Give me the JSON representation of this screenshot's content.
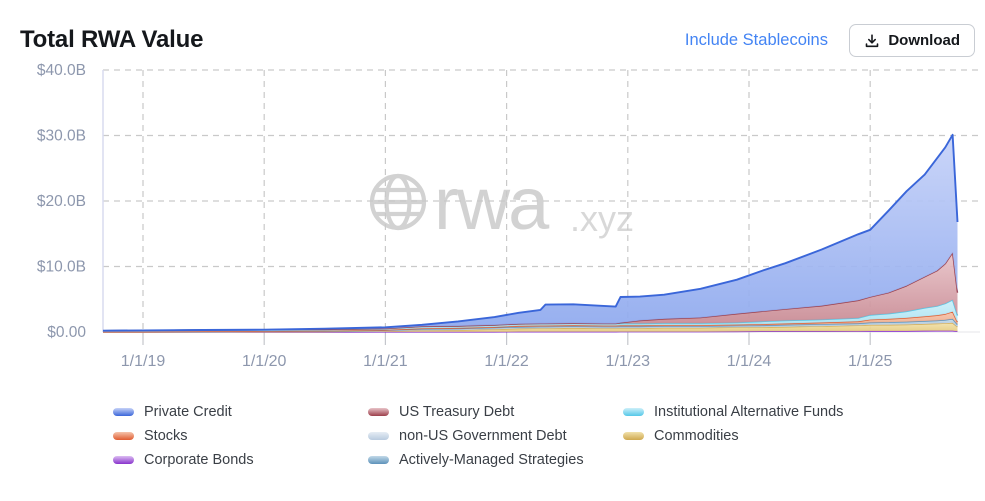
{
  "header": {
    "title": "Total RWA Value",
    "include_stablecoins_label": "Include Stablecoins",
    "download_label": "Download",
    "accent_color": "#4384f4"
  },
  "chart_data": {
    "type": "area",
    "stacked": true,
    "title": "Total RWA Value",
    "xlabel": "",
    "ylabel": "",
    "ylim": [
      0,
      40
    ],
    "xlim": [
      2018.67,
      2025.91
    ],
    "grid": "dashed",
    "legend_position": "bottom",
    "watermark": {
      "icon": "globe-icon",
      "brand": "rwa",
      "suffix": ".xyz",
      "color": "#d2d2d2"
    },
    "y_ticks": [
      {
        "value": 0,
        "label": "$0.00"
      },
      {
        "value": 10,
        "label": "$10.0B"
      },
      {
        "value": 20,
        "label": "$20.0B"
      },
      {
        "value": 30,
        "label": "$30.0B"
      },
      {
        "value": 40,
        "label": "$40.0B"
      }
    ],
    "x_ticks": [
      {
        "year": 2019,
        "label": "1/1/19"
      },
      {
        "year": 2020,
        "label": "1/1/20"
      },
      {
        "year": 2021,
        "label": "1/1/21"
      },
      {
        "year": 2022,
        "label": "1/1/22"
      },
      {
        "year": 2023,
        "label": "1/1/23"
      },
      {
        "year": 2024,
        "label": "1/1/24"
      },
      {
        "year": 2025,
        "label": "1/1/25"
      }
    ],
    "x": [
      2018.67,
      2019.0,
      2019.5,
      2020.0,
      2020.5,
      2021.0,
      2021.3,
      2021.6,
      2021.9,
      2022.1,
      2022.28,
      2022.32,
      2022.55,
      2022.8,
      2022.9,
      2022.94,
      2023.1,
      2023.3,
      2023.6,
      2023.9,
      2024.1,
      2024.3,
      2024.6,
      2024.9,
      2025.0,
      2025.15,
      2025.3,
      2025.45,
      2025.55,
      2025.62,
      2025.68,
      2025.72
    ],
    "stack_order": [
      "corporate_bonds",
      "commodities",
      "non_us_gov",
      "actively_managed",
      "stocks",
      "inst_alt_funds",
      "us_treasury",
      "private_credit"
    ],
    "legend_order": [
      "private_credit",
      "us_treasury",
      "inst_alt_funds",
      "stocks",
      "non_us_gov",
      "commodities",
      "corporate_bonds",
      "actively_managed"
    ],
    "series": {
      "private_credit": {
        "label": "Private Credit",
        "line_color": "#3a66d9",
        "fill_top": "#c6d2f8",
        "fill_bottom": "#8da8ee",
        "values": [
          0,
          0,
          0,
          0,
          0.1,
          0.2,
          0.25,
          0.7,
          1.2,
          1.7,
          2.1,
          2.9,
          2.9,
          2.7,
          2.6,
          3.95,
          3.65,
          3.7,
          4.4,
          5.2,
          6.15,
          7.0,
          8.6,
          10.1,
          10.25,
          12.5,
          14.45,
          15.6,
          17.15,
          17.75,
          18.0,
          10.8
        ]
      },
      "us_treasury": {
        "label": "US Treasury Debt",
        "line_color": "#9c3f4b",
        "fill_top": "#e8c3c8",
        "fill_bottom": "#c5848e",
        "values": [
          0,
          0,
          0,
          0,
          0,
          0,
          0,
          0,
          0,
          0,
          0,
          0,
          0,
          0,
          0,
          0.1,
          0.45,
          0.65,
          0.85,
          1.35,
          1.55,
          1.75,
          2.1,
          2.7,
          2.75,
          3.2,
          3.9,
          4.75,
          5.4,
          6.1,
          7.2,
          3.5
        ]
      },
      "inst_alt_funds": {
        "label": "Institutional Alternative Funds",
        "line_color": "#54c8e8",
        "fill_top": "#cdf0f9",
        "fill_bottom": "#9fdef0",
        "values": [
          0.15,
          0.2,
          0.2,
          0.22,
          0.2,
          0.2,
          0.3,
          0.3,
          0.3,
          0.3,
          0.3,
          0.3,
          0.3,
          0.3,
          0.3,
          0.3,
          0.3,
          0.3,
          0.3,
          0.3,
          0.4,
          0.45,
          0.45,
          0.5,
          0.7,
          0.8,
          1.0,
          1.3,
          1.4,
          1.6,
          1.8,
          1.0
        ]
      },
      "stocks": {
        "label": "Stocks",
        "line_color": "#e05c30",
        "fill_top": "#f5c4ab",
        "fill_bottom": "#eb9d77",
        "values": [
          0,
          0,
          0.03,
          0.03,
          0.05,
          0.05,
          0.08,
          0.1,
          0.1,
          0.15,
          0.15,
          0.15,
          0.15,
          0.15,
          0.15,
          0.15,
          0.15,
          0.15,
          0.15,
          0.15,
          0.2,
          0.2,
          0.25,
          0.3,
          0.45,
          0.5,
          0.6,
          0.7,
          0.8,
          0.9,
          1.1,
          0.35
        ]
      },
      "non_us_gov": {
        "label": "non-US Government Debt",
        "line_color": "#b9cbdf",
        "fill_top": "#e6edf4",
        "fill_bottom": "#d7e2ee",
        "values": [
          0.05,
          0.05,
          0.05,
          0.05,
          0.05,
          0.05,
          0.08,
          0.08,
          0.1,
          0.1,
          0.1,
          0.1,
          0.1,
          0.1,
          0.1,
          0.1,
          0.1,
          0.1,
          0.1,
          0.1,
          0.1,
          0.1,
          0.1,
          0.1,
          0.1,
          0.15,
          0.15,
          0.15,
          0.15,
          0.15,
          0.15,
          0.1
        ]
      },
      "commodities": {
        "label": "Commodities",
        "line_color": "#cfa84e",
        "fill_top": "#f1e1ab",
        "fill_bottom": "#e4c97c",
        "values": [
          0,
          0,
          0.02,
          0.05,
          0.08,
          0.15,
          0.25,
          0.3,
          0.4,
          0.5,
          0.55,
          0.55,
          0.6,
          0.55,
          0.55,
          0.55,
          0.55,
          0.6,
          0.6,
          0.65,
          0.65,
          0.7,
          0.8,
          0.9,
          0.95,
          0.95,
          1.0,
          1.05,
          1.1,
          1.15,
          1.2,
          0.7
        ]
      },
      "corporate_bonds": {
        "label": "Corporate Bonds",
        "line_color": "#8833cc",
        "fill_top": "#dcbdf2",
        "fill_bottom": "#c9a0ea",
        "values": [
          0,
          0,
          0,
          0,
          0,
          0.02,
          0.02,
          0.02,
          0.02,
          0.03,
          0.03,
          0.03,
          0.03,
          0.03,
          0.03,
          0.05,
          0.05,
          0.05,
          0.05,
          0.08,
          0.1,
          0.1,
          0.1,
          0.12,
          0.15,
          0.15,
          0.15,
          0.18,
          0.2,
          0.2,
          0.2,
          0.1
        ]
      },
      "actively_managed": {
        "label": "Actively-Managed Strategies",
        "line_color": "#5d92ba",
        "fill_top": "#c2d9e8",
        "fill_bottom": "#a8c8dd",
        "values": [
          0,
          0,
          0,
          0,
          0.02,
          0.05,
          0.12,
          0.12,
          0.15,
          0.15,
          0.15,
          0.15,
          0.15,
          0.15,
          0.15,
          0.15,
          0.15,
          0.15,
          0.15,
          0.15,
          0.15,
          0.2,
          0.2,
          0.2,
          0.25,
          0.25,
          0.25,
          0.3,
          0.3,
          0.35,
          0.45,
          0.25
        ]
      }
    }
  }
}
